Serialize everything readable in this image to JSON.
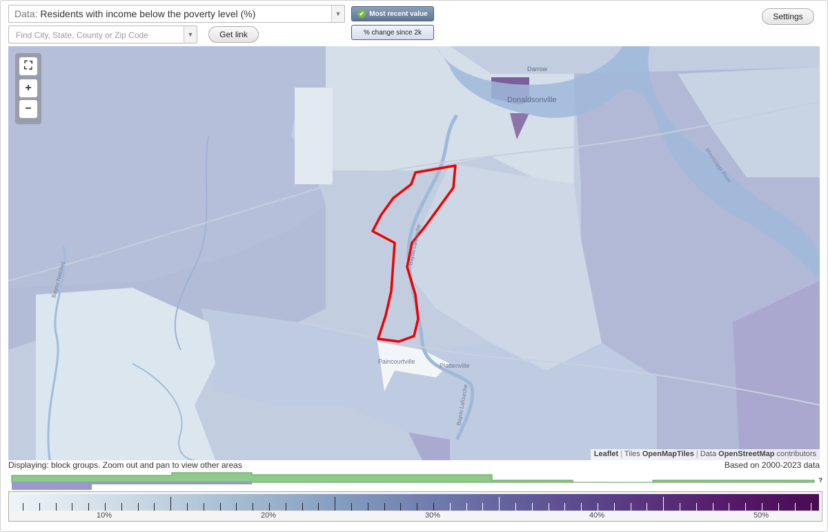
{
  "controls": {
    "data_prefix": "Data:",
    "data_value": "Residents with income below the poverty level (%)",
    "search_placeholder": "Find City, State, County or Zip Code",
    "get_link_label": "Get link",
    "toggle_recent": "Most recent value",
    "toggle_change": "% change since 2k",
    "settings_label": "Settings"
  },
  "map": {
    "place_labels": [
      "Darrow",
      "Donaldsonville",
      "Paincourtville",
      "Plattenville"
    ],
    "road_labels": [
      "Bayou Lafourche",
      "Bayou Lafourche",
      "Bayou Natchez",
      "Mississippi River"
    ],
    "highlight_outline_color": "#ee0000",
    "attribution": {
      "leaflet": "Leaflet",
      "tiles_prefix": "Tiles",
      "tiles": "OpenMapTiles",
      "data_prefix": "Data",
      "data": "OpenStreetMap",
      "contributors": "contributors"
    },
    "zoom_icons": [
      "fullscreen-icon",
      "zoom-in-icon",
      "zoom-out-icon"
    ]
  },
  "status": {
    "displaying": "Displaying: block groups. Zoom out and pan to view other areas",
    "based_on": "Based on 2000-2023 data",
    "unknown_mark": "?"
  },
  "legend": {
    "tick_labels": [
      "10%",
      "20%",
      "30%",
      "40%",
      "50%"
    ],
    "colors": {
      "low": "#eef4f8",
      "mid": "#859fc0",
      "high": "#4a0a54",
      "histogram_area": "#8fca8a",
      "histogram_selection": "#9b98d0"
    }
  }
}
